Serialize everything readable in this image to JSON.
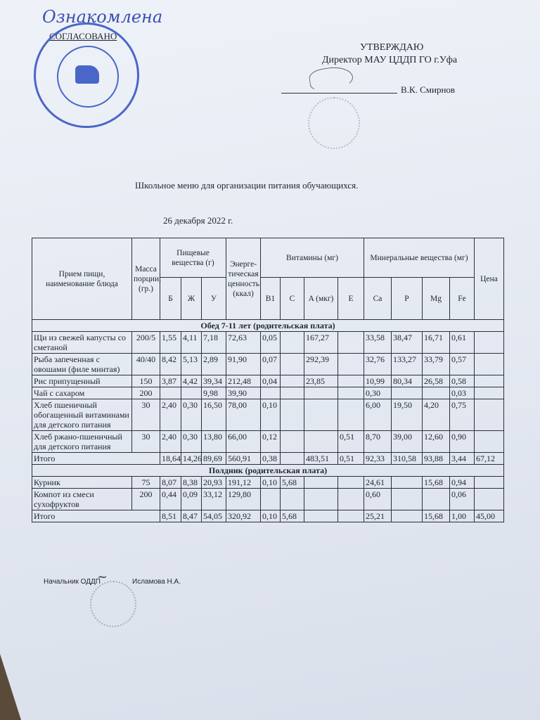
{
  "header": {
    "handwritten_note": "Ознакомлена",
    "agreed_label": "СОГЛАСОВАНО",
    "approve_label": "УТВЕРЖДАЮ",
    "director_title": "Директор МАУ ЦДДП ГО г.Уфа",
    "director_name": "В.К. Смирнов"
  },
  "document": {
    "title": "Школьное меню для организации питания обучающихся.",
    "date": "26 декабря 2022 г."
  },
  "table": {
    "headers": {
      "meal": "Прием пищи, наименование блюда",
      "mass": "Масса порции, (гр.)",
      "nutrients": "Пищевые вещества (г)",
      "b": "Б",
      "zh": "Ж",
      "u": "У",
      "energy": "Энерге-тическая ценность (ккал)",
      "vitamins": "Витамины (мг)",
      "b1": "B1",
      "c": "C",
      "a": "A (мкг)",
      "e": "E",
      "minerals": "Минеральные вещества (мг)",
      "ca": "Ca",
      "p": "P",
      "mg": "Mg",
      "fe": "Fe",
      "price": "Цена"
    },
    "sections": [
      {
        "title": "Обед 7-11 лет (родительская плата)",
        "rows": [
          [
            "Щи из свежей капусты со сметаной",
            "200/5",
            "1,55",
            "4,11",
            "7,18",
            "72,63",
            "0,05",
            "",
            "167,27",
            "",
            "33,58",
            "38,47",
            "16,71",
            "0,61",
            ""
          ],
          [
            "Рыба запеченная с овошами (филе минтая)",
            "40/40",
            "8,42",
            "5,13",
            "2,89",
            "91,90",
            "0,07",
            "",
            "292,39",
            "",
            "32,76",
            "133,27",
            "33,79",
            "0,57",
            ""
          ],
          [
            "Рис припущенный",
            "150",
            "3,87",
            "4,42",
            "39,34",
            "212,48",
            "0,04",
            "",
            "23,85",
            "",
            "10,99",
            "80,34",
            "26,58",
            "0,58",
            ""
          ],
          [
            "Чай с сахаром",
            "200",
            "",
            "",
            "9,98",
            "39,90",
            "",
            "",
            "",
            "",
            "0,30",
            "",
            "",
            "0,03",
            ""
          ],
          [
            "Хлеб пшеничный обогащенный витаминами для детского питания",
            "30",
            "2,40",
            "0,30",
            "16,50",
            "78,00",
            "0,10",
            "",
            "",
            "",
            "6,00",
            "19,50",
            "4,20",
            "0,75",
            ""
          ],
          [
            "Хлеб ржано-пшеничный для детского питания",
            "30",
            "2,40",
            "0,30",
            "13,80",
            "66,00",
            "0,12",
            "",
            "",
            "0,51",
            "8,70",
            "39,00",
            "12,60",
            "0,90",
            ""
          ]
        ],
        "total": [
          "Итого",
          "18,64",
          "14,26",
          "89,69",
          "560,91",
          "0,38",
          "",
          "483,51",
          "0,51",
          "92,33",
          "310,58",
          "93,88",
          "3,44",
          "67,12"
        ]
      },
      {
        "title": "Полдник (родительская плата)",
        "rows": [
          [
            "Курник",
            "75",
            "8,07",
            "8,38",
            "20,93",
            "191,12",
            "0,10",
            "5,68",
            "",
            "",
            "24,61",
            "",
            "15,68",
            "0,94",
            ""
          ],
          [
            "Компот из смеси сухофруктов",
            "200",
            "0,44",
            "0,09",
            "33,12",
            "129,80",
            "",
            "",
            "",
            "",
            "0,60",
            "",
            "",
            "0,06",
            ""
          ]
        ],
        "total": [
          "Итого",
          "8,51",
          "8,47",
          "54,05",
          "320,92",
          "0,10",
          "5,68",
          "",
          "",
          "25,21",
          "",
          "15,68",
          "1,00",
          "45,00"
        ]
      }
    ]
  },
  "footer": {
    "position": "Начальник ОДДП",
    "name": "Исламова Н.А."
  }
}
